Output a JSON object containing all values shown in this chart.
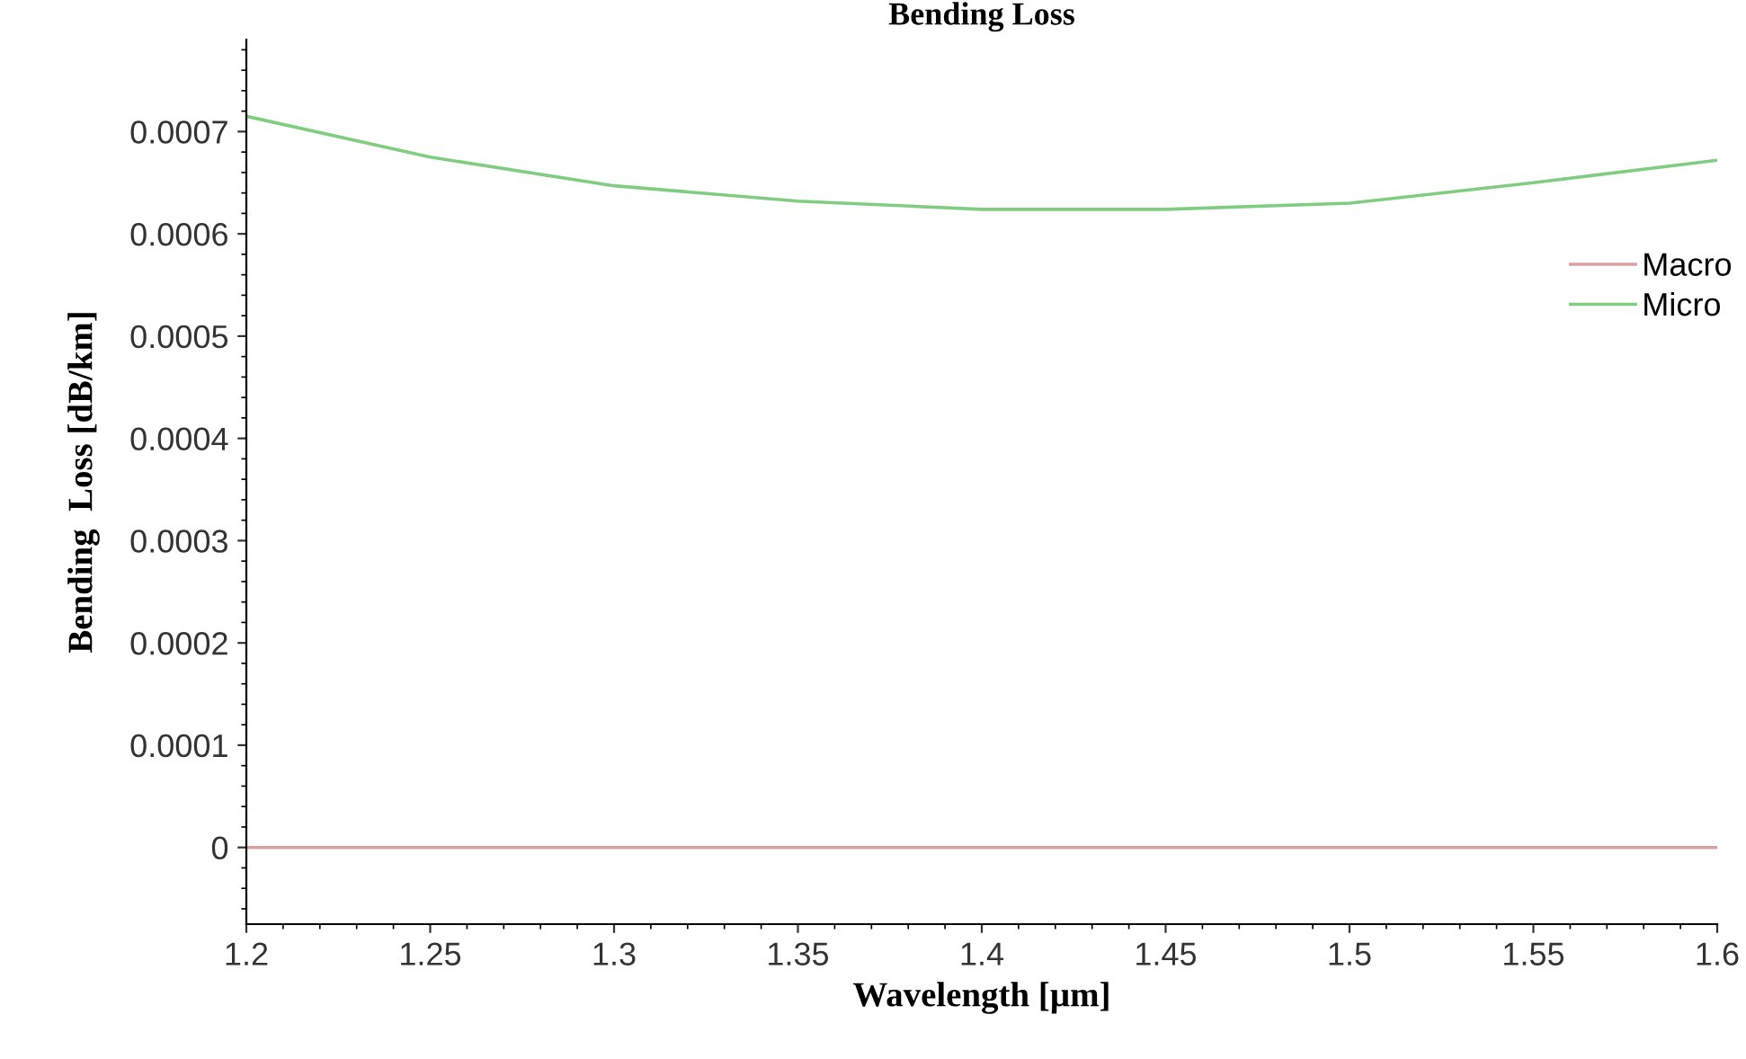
{
  "chart_data": {
    "type": "line",
    "title": "Bending Loss",
    "xlabel": "Wavelength [µm]",
    "ylabel": "Bending  Loss [dB/km]",
    "xlim": [
      1.2,
      1.6
    ],
    "xticks": [
      1.2,
      1.25,
      1.3,
      1.35,
      1.4,
      1.45,
      1.5,
      1.55,
      1.6
    ],
    "ylim": [
      -7.5e-05,
      0.00079
    ],
    "yticks": [
      {
        "value": 0,
        "label": "0"
      },
      {
        "value": 0.0001,
        "label": "0.0001"
      },
      {
        "value": 0.0002,
        "label": "0.0002"
      },
      {
        "value": 0.0003,
        "label": "0.0003"
      },
      {
        "value": 0.0004,
        "label": "0.0004"
      },
      {
        "value": 0.0005,
        "label": "0.0005"
      },
      {
        "value": 0.0006,
        "label": "0.0006"
      },
      {
        "value": 0.0007,
        "label": "0.0007"
      }
    ],
    "x": [
      1.2,
      1.25,
      1.3,
      1.35,
      1.4,
      1.45,
      1.5,
      1.55,
      1.6
    ],
    "series": [
      {
        "name": "Macro",
        "color": "#d9a0a0",
        "values": [
          0,
          0,
          0,
          0,
          0,
          0,
          0,
          0,
          0
        ]
      },
      {
        "name": "Micro",
        "color": "#80cc80",
        "values": [
          0.000715,
          0.000675,
          0.000647,
          0.000632,
          0.000624,
          0.000624,
          0.00063,
          0.00065,
          0.000672
        ]
      }
    ],
    "legend": "right",
    "grid": false,
    "marker": "none",
    "line_style": "solid"
  }
}
